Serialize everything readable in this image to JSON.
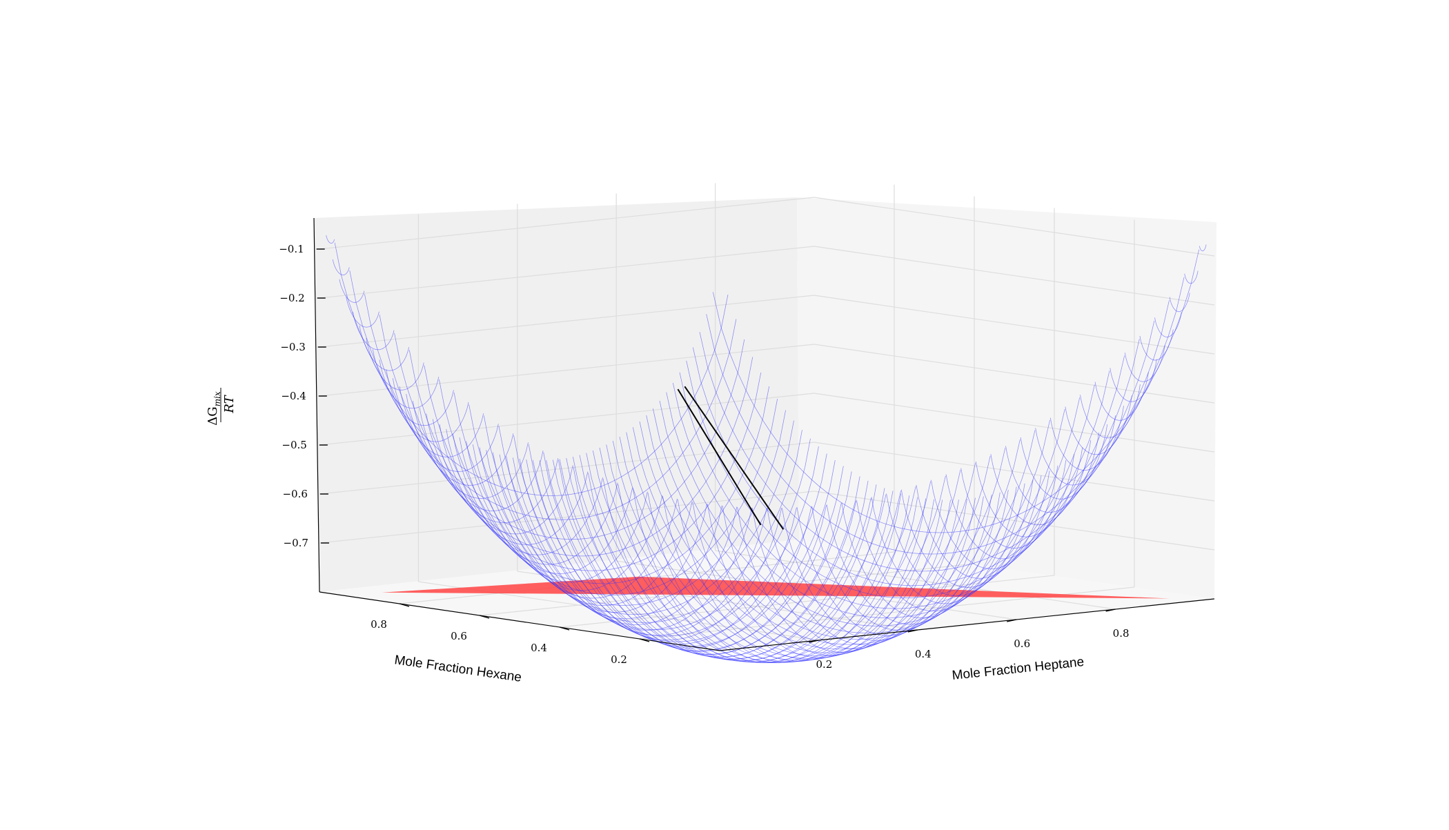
{
  "chart_data": {
    "type": "surface3d",
    "title": "",
    "xlabel": "Mole Fraction Hexane",
    "ylabel": "Mole Fraction Heptane",
    "zlabel": {
      "numerator": "ΔG",
      "subscript": "mix",
      "denominator": "RT"
    },
    "xticks": [
      "0.2",
      "0.4",
      "0.6",
      "0.8"
    ],
    "yticks": [
      "0.2",
      "0.4",
      "0.6",
      "0.8"
    ],
    "zticks": [
      "−0.1",
      "−0.2",
      "−0.3",
      "−0.4",
      "−0.5",
      "−0.6",
      "−0.7"
    ],
    "xlim": [
      0,
      1
    ],
    "ylim": [
      0,
      1
    ],
    "zlim": [
      -0.8,
      -0.05
    ],
    "surface": {
      "quantity": "ΔG_mix/RT",
      "minimum": -0.7,
      "color": "#3333ff",
      "style": "wireframe"
    },
    "floor_region": {
      "color": "#ff4d4d"
    },
    "tie_lines": [
      {
        "color": "#000000"
      },
      {
        "color": "#000000"
      }
    ],
    "grid": true
  }
}
